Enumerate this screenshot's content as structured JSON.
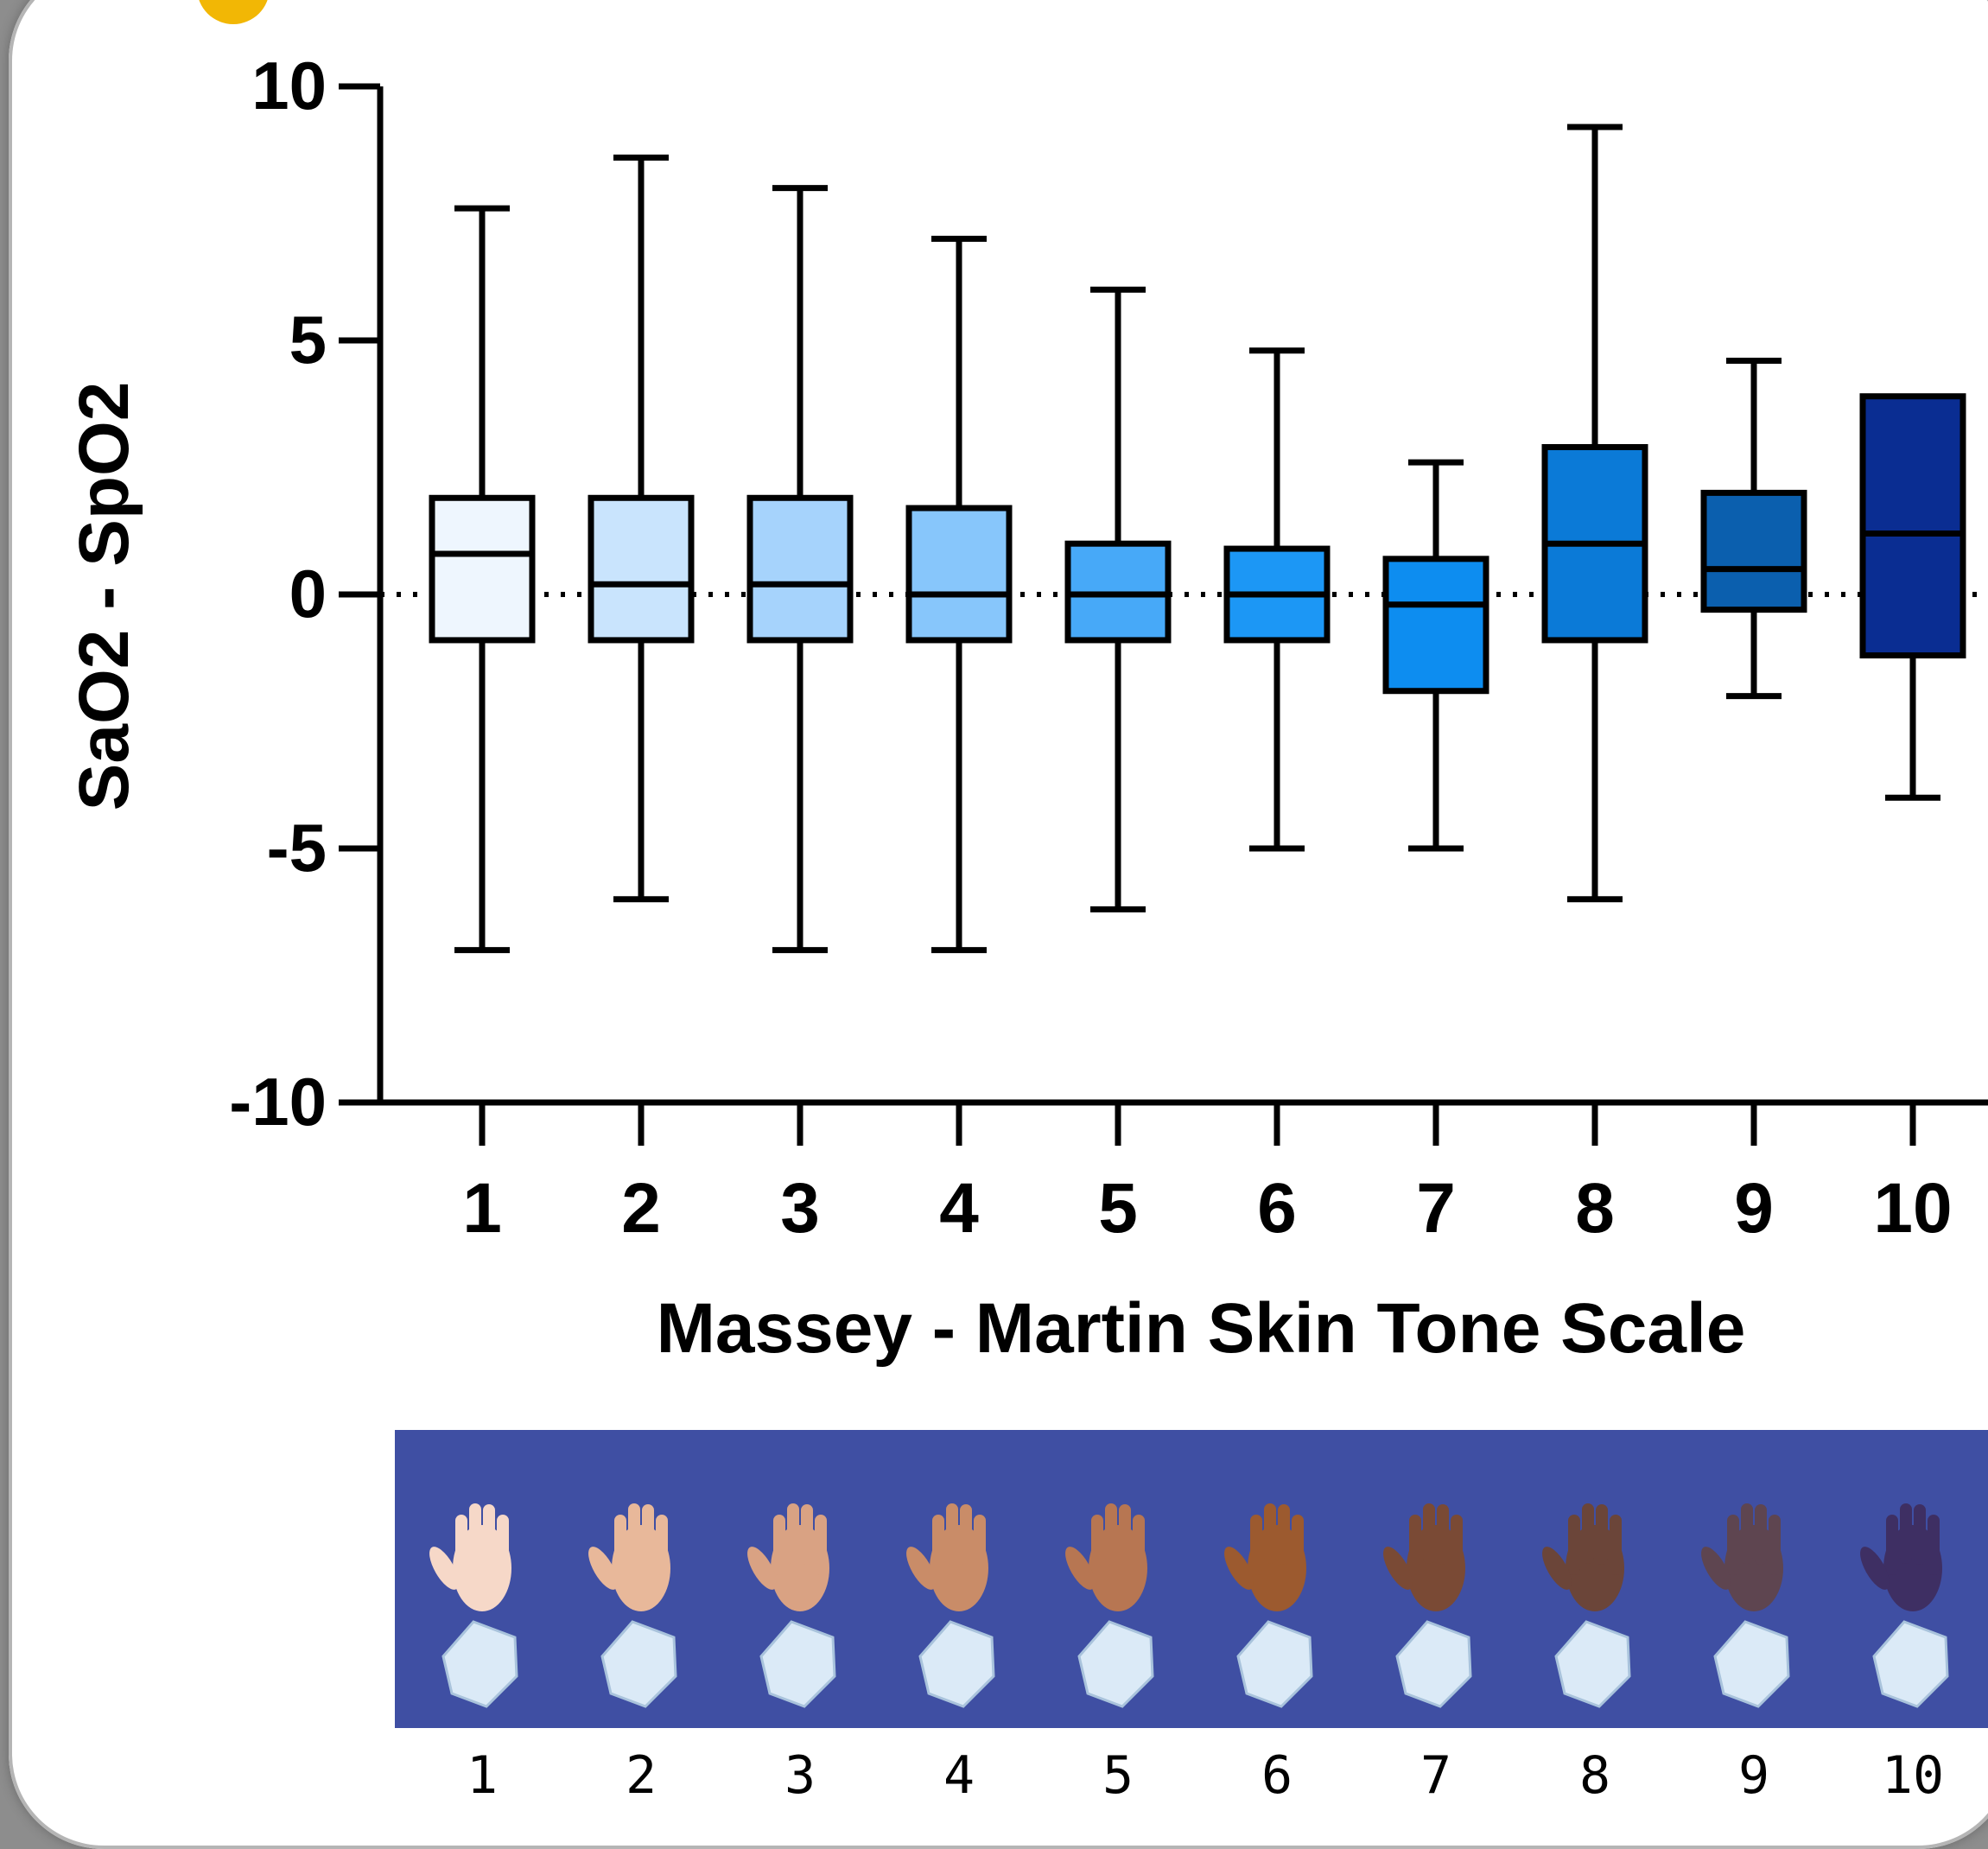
{
  "chart_data": {
    "type": "box",
    "ylabel": "SaO2 - SpO2",
    "xlabel": "Massey - Martin Skin Tone Scale",
    "ylim": [
      -10,
      10
    ],
    "yticks": [
      10,
      5,
      0,
      -5,
      -10
    ],
    "reference_line": 0,
    "categories": [
      "1",
      "2",
      "3",
      "4",
      "5",
      "6",
      "7",
      "8",
      "9",
      "10"
    ],
    "boxes": [
      {
        "category": "1",
        "min": -7.0,
        "q1": -0.9,
        "median": 0.8,
        "q3": 1.9,
        "max": 7.6,
        "color": "#eef6fe"
      },
      {
        "category": "2",
        "min": -6.0,
        "q1": -0.9,
        "median": 0.2,
        "q3": 1.9,
        "max": 8.6,
        "color": "#c9e4fd"
      },
      {
        "category": "3",
        "min": -7.0,
        "q1": -0.9,
        "median": 0.2,
        "q3": 1.9,
        "max": 8.0,
        "color": "#a6d3fc"
      },
      {
        "category": "4",
        "min": -7.0,
        "q1": -0.9,
        "median": 0.0,
        "q3": 1.7,
        "max": 7.0,
        "color": "#87c6fb"
      },
      {
        "category": "5",
        "min": -6.2,
        "q1": -0.9,
        "median": 0.0,
        "q3": 1.0,
        "max": 6.0,
        "color": "#47a9f8"
      },
      {
        "category": "6",
        "min": -5.0,
        "q1": -0.9,
        "median": 0.0,
        "q3": 0.9,
        "max": 4.8,
        "color": "#1c97f5"
      },
      {
        "category": "7",
        "min": -5.0,
        "q1": -1.9,
        "median": -0.2,
        "q3": 0.7,
        "max": 2.6,
        "color": "#0d8df0"
      },
      {
        "category": "8",
        "min": -6.0,
        "q1": -0.9,
        "median": 1.0,
        "q3": 2.9,
        "max": 9.2,
        "color": "#0b7ad7"
      },
      {
        "category": "9",
        "min": -2.0,
        "q1": -0.3,
        "median": 0.5,
        "q3": 2.0,
        "max": 4.6,
        "color": "#0b5fae"
      },
      {
        "category": "10",
        "min": -4.0,
        "q1": -1.2,
        "median": 1.2,
        "q3": 3.9,
        "max": 3.9,
        "color": "#0a2d92"
      }
    ]
  },
  "scale_strip": {
    "background": "#3f4fa3",
    "hands": [
      {
        "label": "1",
        "skin": "#f6d8c8"
      },
      {
        "label": "2",
        "skin": "#e8b89a"
      },
      {
        "label": "3",
        "skin": "#d9a283"
      },
      {
        "label": "4",
        "skin": "#c98c68"
      },
      {
        "label": "5",
        "skin": "#b77652"
      },
      {
        "label": "6",
        "skin": "#9c5a2f"
      },
      {
        "label": "7",
        "skin": "#7a4a35"
      },
      {
        "label": "8",
        "skin": "#6b4539"
      },
      {
        "label": "9",
        "skin": "#5e4550"
      },
      {
        "label": "10",
        "skin": "#3e2f63"
      }
    ]
  }
}
